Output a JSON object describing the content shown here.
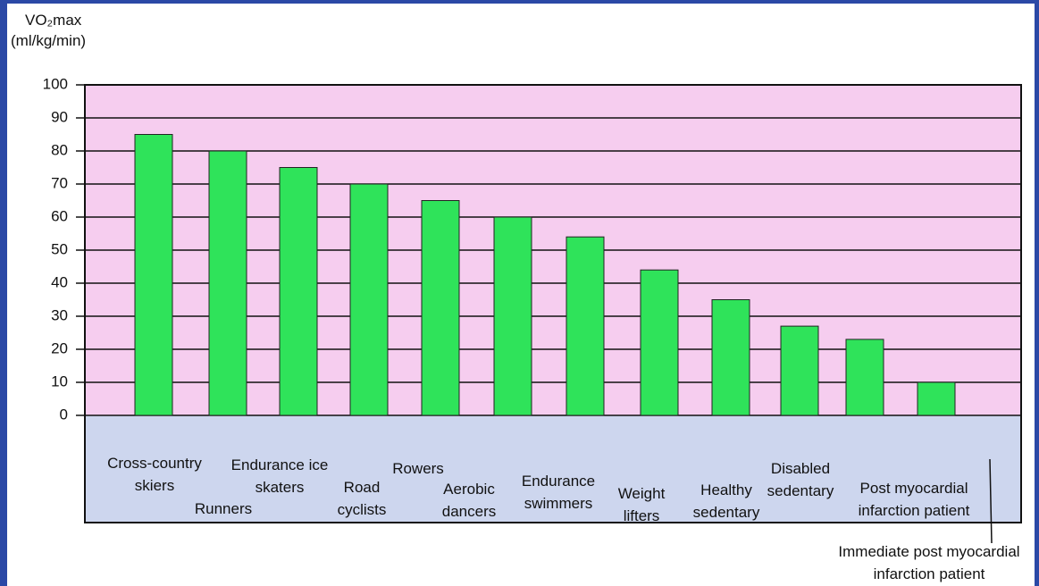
{
  "chart_data": {
    "type": "bar",
    "y_axis_label": "VO₂max",
    "y_axis_unit": "(ml/kg/min)",
    "categories": [
      "Cross-country skiers",
      "Runners",
      "Endurance ice skaters",
      "Road cyclists",
      "Rowers",
      "Aerobic dancers",
      "Endurance swimmers",
      "Weight lifters",
      "Healthy sedentary",
      "Disabled sedentary",
      "Post myocardial infarction patient",
      "Immediate post myocardial infarction patient"
    ],
    "values": [
      85,
      80,
      75,
      70,
      65,
      60,
      54,
      44,
      35,
      27,
      23,
      10
    ],
    "color": "#2fe35a",
    "ylim": [
      0,
      100
    ],
    "yticks": [
      0,
      10,
      20,
      30,
      40,
      50,
      60,
      70,
      80,
      90,
      100
    ],
    "grid": true
  }
}
